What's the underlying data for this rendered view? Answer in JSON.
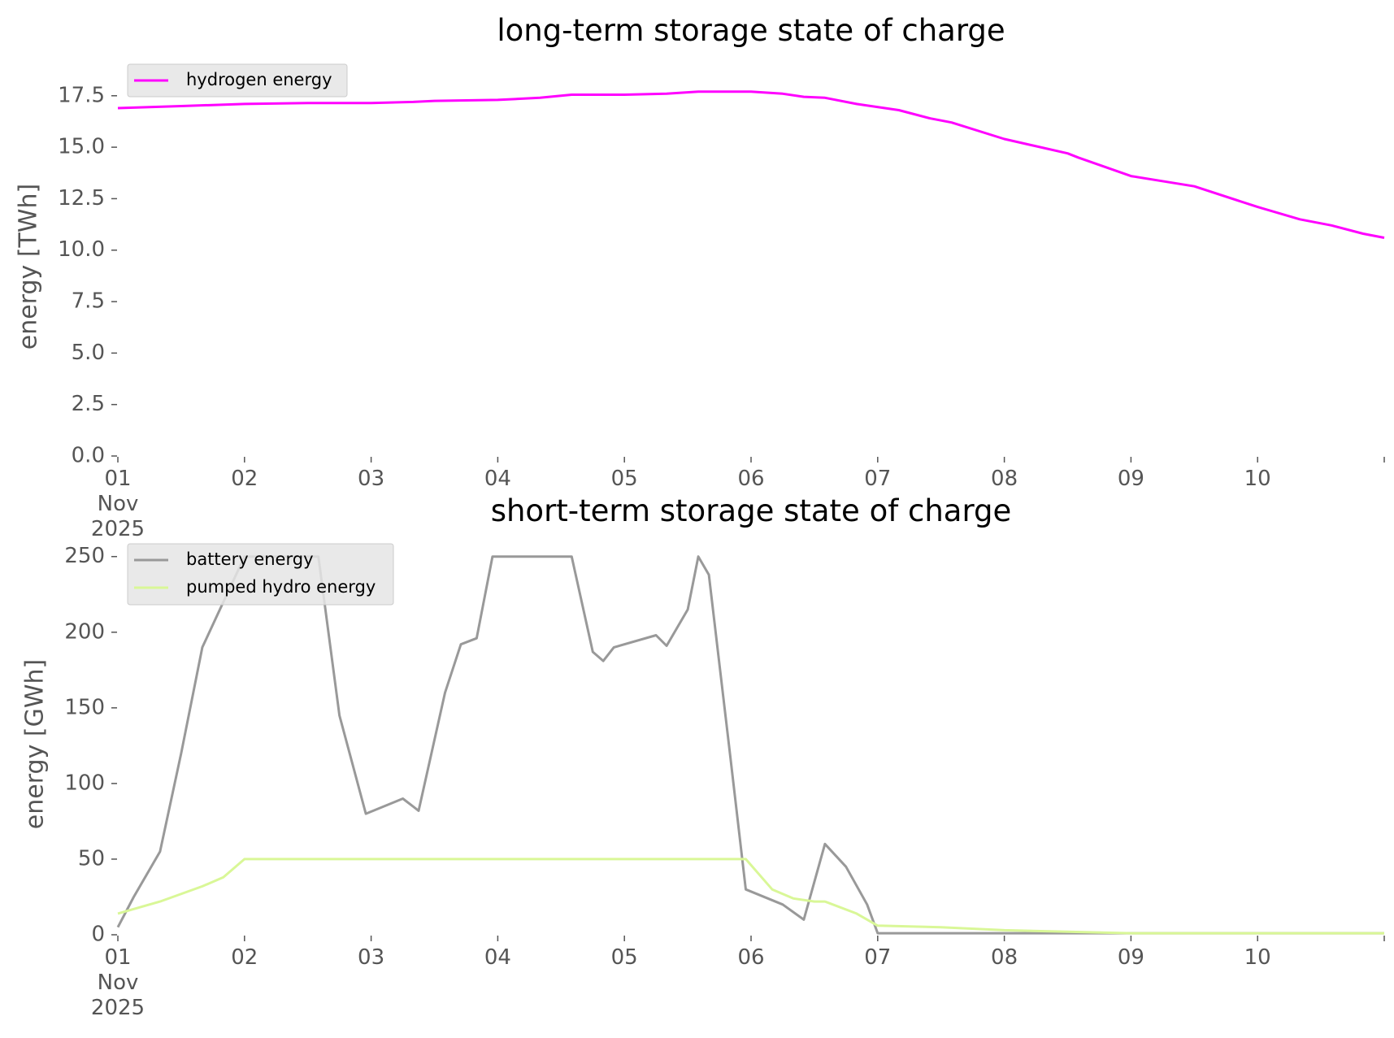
{
  "chart_data": [
    {
      "type": "line",
      "title": "long-term storage state of charge",
      "xlabel": "",
      "ylabel": "energy [TWh]",
      "x_tick_labels": [
        "01\nNov\n2025",
        "02",
        "03",
        "04",
        "05",
        "06",
        "07",
        "08",
        "09",
        "10",
        ""
      ],
      "y_tick_labels": [
        "0.0",
        "2.5",
        "5.0",
        "7.5",
        "10.0",
        "12.5",
        "15.0",
        "17.5"
      ],
      "xlim": [
        "2025-11-01",
        "2025-11-11"
      ],
      "ylim": [
        0,
        18.4
      ],
      "grid": false,
      "legend_position": "upper-left",
      "series": [
        {
          "name": "hydrogen energy",
          "color": "#ff00ff",
          "points": [
            [
              "2025-11-01T00:00",
              16.9
            ],
            [
              "2025-11-01T12:00",
              17.0
            ],
            [
              "2025-11-02T00:00",
              17.1
            ],
            [
              "2025-11-02T12:00",
              17.15
            ],
            [
              "2025-11-03T00:00",
              17.15
            ],
            [
              "2025-11-03T08:00",
              17.2
            ],
            [
              "2025-11-03T12:00",
              17.25
            ],
            [
              "2025-11-04T00:00",
              17.3
            ],
            [
              "2025-11-04T08:00",
              17.4
            ],
            [
              "2025-11-04T14:00",
              17.55
            ],
            [
              "2025-11-05T00:00",
              17.55
            ],
            [
              "2025-11-05T08:00",
              17.6
            ],
            [
              "2025-11-05T14:00",
              17.7
            ],
            [
              "2025-11-06T00:00",
              17.7
            ],
            [
              "2025-11-06T06:00",
              17.6
            ],
            [
              "2025-11-06T10:00",
              17.45
            ],
            [
              "2025-11-06T14:00",
              17.4
            ],
            [
              "2025-11-06T20:00",
              17.1
            ],
            [
              "2025-11-07T04:00",
              16.8
            ],
            [
              "2025-11-07T10:00",
              16.4
            ],
            [
              "2025-11-07T14:00",
              16.2
            ],
            [
              "2025-11-08T00:00",
              15.4
            ],
            [
              "2025-11-08T12:00",
              14.7
            ],
            [
              "2025-11-08T14:00",
              14.5
            ],
            [
              "2025-11-09T00:00",
              13.6
            ],
            [
              "2025-11-09T12:00",
              13.1
            ],
            [
              "2025-11-10T00:00",
              12.1
            ],
            [
              "2025-11-10T08:00",
              11.5
            ],
            [
              "2025-11-10T14:00",
              11.2
            ],
            [
              "2025-11-10T20:00",
              10.8
            ],
            [
              "2025-11-11T00:00",
              10.6
            ]
          ]
        }
      ]
    },
    {
      "type": "line",
      "title": "short-term storage state of charge",
      "xlabel": "",
      "ylabel": "energy [GWh]",
      "x_tick_labels": [
        "01\nNov\n2025",
        "02",
        "03",
        "04",
        "05",
        "06",
        "07",
        "08",
        "09",
        "10",
        ""
      ],
      "y_tick_labels": [
        "0",
        "50",
        "100",
        "150",
        "200",
        "250"
      ],
      "xlim": [
        "2025-11-01",
        "2025-11-11"
      ],
      "ylim": [
        0,
        252
      ],
      "grid": false,
      "legend_position": "upper-left",
      "series": [
        {
          "name": "battery energy",
          "color": "#999999",
          "points": [
            [
              "2025-11-01T00:00",
              5
            ],
            [
              "2025-11-01T03:00",
              25
            ],
            [
              "2025-11-01T08:00",
              55
            ],
            [
              "2025-11-01T12:00",
              120
            ],
            [
              "2025-11-01T16:00",
              190
            ],
            [
              "2025-11-01T20:00",
              220
            ],
            [
              "2025-11-02T00:00",
              250
            ],
            [
              "2025-11-02T14:00",
              250
            ],
            [
              "2025-11-02T18:00",
              145
            ],
            [
              "2025-11-02T23:00",
              80
            ],
            [
              "2025-11-03T06:00",
              90
            ],
            [
              "2025-11-03T09:00",
              82
            ],
            [
              "2025-11-03T14:00",
              160
            ],
            [
              "2025-11-03T17:00",
              192
            ],
            [
              "2025-11-03T20:00",
              196
            ],
            [
              "2025-11-03T23:00",
              250
            ],
            [
              "2025-11-04T14:00",
              250
            ],
            [
              "2025-11-04T18:00",
              187
            ],
            [
              "2025-11-04T20:00",
              181
            ],
            [
              "2025-11-04T22:00",
              190
            ],
            [
              "2025-11-05T06:00",
              198
            ],
            [
              "2025-11-05T08:00",
              191
            ],
            [
              "2025-11-05T12:00",
              215
            ],
            [
              "2025-11-05T14:00",
              250
            ],
            [
              "2025-11-05T16:00",
              238
            ],
            [
              "2025-11-05T20:00",
              120
            ],
            [
              "2025-11-05T23:00",
              30
            ],
            [
              "2025-11-06T06:00",
              20
            ],
            [
              "2025-11-06T10:00",
              10
            ],
            [
              "2025-11-06T14:00",
              60
            ],
            [
              "2025-11-06T18:00",
              45
            ],
            [
              "2025-11-06T22:00",
              20
            ],
            [
              "2025-11-07T00:00",
              1
            ],
            [
              "2025-11-11T00:00",
              1
            ]
          ]
        },
        {
          "name": "pumped hydro energy",
          "color": "#d9f797",
          "points": [
            [
              "2025-11-01T00:00",
              14
            ],
            [
              "2025-11-01T08:00",
              22
            ],
            [
              "2025-11-01T16:00",
              32
            ],
            [
              "2025-11-01T20:00",
              38
            ],
            [
              "2025-11-02T00:00",
              50
            ],
            [
              "2025-11-05T23:00",
              50
            ],
            [
              "2025-11-06T04:00",
              30
            ],
            [
              "2025-11-06T08:00",
              24
            ],
            [
              "2025-11-06T12:00",
              22
            ],
            [
              "2025-11-06T14:00",
              22
            ],
            [
              "2025-11-06T20:00",
              14
            ],
            [
              "2025-11-07T00:00",
              6
            ],
            [
              "2025-11-07T12:00",
              5
            ],
            [
              "2025-11-08T00:00",
              3
            ],
            [
              "2025-11-08T12:00",
              2
            ],
            [
              "2025-11-09T00:00",
              1
            ],
            [
              "2025-11-11T00:00",
              1
            ]
          ]
        }
      ]
    }
  ]
}
